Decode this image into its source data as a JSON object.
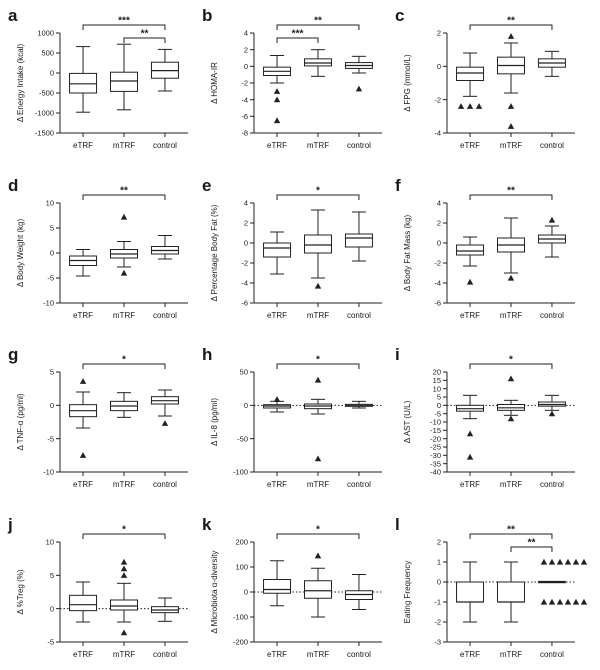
{
  "categories": [
    "eTRF",
    "mTRF",
    "control"
  ],
  "chart_data": [
    {
      "letter": "a",
      "type": "box",
      "ylabel": "Δ Energy Intake (kcal)",
      "ylim": [
        -1500,
        1000
      ],
      "yticks": [
        -1500,
        -1000,
        -500,
        0,
        500,
        1000
      ],
      "zero_line": false,
      "boxes": [
        {
          "category": "eTRF",
          "whisker_low": -980,
          "q1": -500,
          "median": -270,
          "q3": -10,
          "whisker_high": 660,
          "outliers": []
        },
        {
          "category": "mTRF",
          "whisker_low": -920,
          "q1": -460,
          "median": -200,
          "q3": 20,
          "whisker_high": 720,
          "outliers": []
        },
        {
          "category": "control",
          "whisker_low": -450,
          "q1": -130,
          "median": 60,
          "q3": 270,
          "whisker_high": 590,
          "outliers": []
        }
      ],
      "significance": [
        {
          "from": "eTRF",
          "to": "control",
          "label": "***",
          "level": 0
        },
        {
          "from": "mTRF",
          "to": "control",
          "label": "**",
          "level": 1
        }
      ]
    },
    {
      "letter": "b",
      "type": "box",
      "ylabel": "Δ HOMA-IR",
      "ylim": [
        -8,
        4
      ],
      "yticks": [
        -8,
        -6,
        -4,
        -2,
        0,
        2,
        4
      ],
      "zero_line": false,
      "boxes": [
        {
          "category": "eTRF",
          "whisker_low": -2.0,
          "q1": -1.1,
          "median": -0.6,
          "q3": -0.1,
          "whisker_high": 1.3,
          "outliers": [
            -3.0,
            -4.0,
            -6.5
          ]
        },
        {
          "category": "mTRF",
          "whisker_low": -1.2,
          "q1": 0.05,
          "median": 0.4,
          "q3": 0.9,
          "whisker_high": 2.0,
          "outliers": []
        },
        {
          "category": "control",
          "whisker_low": -0.8,
          "q1": -0.25,
          "median": 0.1,
          "q3": 0.45,
          "whisker_high": 1.2,
          "outliers": [
            -2.7
          ]
        }
      ],
      "significance": [
        {
          "from": "eTRF",
          "to": "control",
          "label": "**",
          "level": 0
        },
        {
          "from": "eTRF",
          "to": "mTRF",
          "label": "***",
          "level": 1
        }
      ]
    },
    {
      "letter": "c",
      "type": "box",
      "ylabel": "Δ FPG (mmol/L)",
      "ylim": [
        -4,
        2
      ],
      "yticks": [
        -4,
        -2,
        0,
        2
      ],
      "zero_line": false,
      "boxes": [
        {
          "category": "eTRF",
          "whisker_low": -1.8,
          "q1": -0.85,
          "median": -0.4,
          "q3": -0.05,
          "whisker_high": 0.8,
          "outliers": [
            -2.4,
            -2.4,
            -2.4
          ]
        },
        {
          "category": "mTRF",
          "whisker_low": -1.6,
          "q1": -0.45,
          "median": 0.05,
          "q3": 0.55,
          "whisker_high": 1.4,
          "outliers": [
            1.8,
            -2.4,
            -3.6
          ]
        },
        {
          "category": "control",
          "whisker_low": -0.6,
          "q1": -0.05,
          "median": 0.2,
          "q3": 0.45,
          "whisker_high": 0.9,
          "outliers": []
        }
      ],
      "significance": [
        {
          "from": "eTRF",
          "to": "control",
          "label": "**",
          "level": 0
        }
      ]
    },
    {
      "letter": "d",
      "type": "box",
      "ylabel": "Δ Body Weight (kg)",
      "ylim": [
        -10,
        10
      ],
      "yticks": [
        -10,
        -5,
        0,
        5,
        10
      ],
      "zero_line": false,
      "boxes": [
        {
          "category": "eTRF",
          "whisker_low": -4.6,
          "q1": -2.5,
          "median": -1.5,
          "q3": -0.6,
          "whisker_high": 0.7,
          "outliers": []
        },
        {
          "category": "mTRF",
          "whisker_low": -2.8,
          "q1": -1.0,
          "median": -0.2,
          "q3": 0.7,
          "whisker_high": 2.3,
          "outliers": [
            7.2,
            -4.0
          ]
        },
        {
          "category": "control",
          "whisker_low": -1.2,
          "q1": -0.2,
          "median": 0.5,
          "q3": 1.3,
          "whisker_high": 3.5,
          "outliers": []
        }
      ],
      "significance": [
        {
          "from": "eTRF",
          "to": "control",
          "label": "**",
          "level": 0
        }
      ]
    },
    {
      "letter": "e",
      "type": "box",
      "ylabel": "Δ Percentage Body Fat (%)",
      "ylim": [
        -6,
        4
      ],
      "yticks": [
        -6,
        -4,
        -2,
        0,
        2,
        4
      ],
      "zero_line": false,
      "boxes": [
        {
          "category": "eTRF",
          "whisker_low": -3.1,
          "q1": -1.4,
          "median": -0.5,
          "q3": 0.0,
          "whisker_high": 1.1,
          "outliers": []
        },
        {
          "category": "mTRF",
          "whisker_low": -3.5,
          "q1": -1.0,
          "median": -0.2,
          "q3": 0.8,
          "whisker_high": 3.3,
          "outliers": [
            -4.3
          ]
        },
        {
          "category": "control",
          "whisker_low": -1.8,
          "q1": -0.4,
          "median": 0.5,
          "q3": 0.9,
          "whisker_high": 3.1,
          "outliers": []
        }
      ],
      "significance": [
        {
          "from": "eTRF",
          "to": "control",
          "label": "*",
          "level": 0
        }
      ]
    },
    {
      "letter": "f",
      "type": "box",
      "ylabel": "Δ Body Fat Mass (kg)",
      "ylim": [
        -6,
        4
      ],
      "yticks": [
        -6,
        -4,
        -2,
        0,
        2,
        4
      ],
      "zero_line": false,
      "boxes": [
        {
          "category": "eTRF",
          "whisker_low": -2.3,
          "q1": -1.2,
          "median": -0.8,
          "q3": -0.2,
          "whisker_high": 0.6,
          "outliers": [
            -3.9
          ]
        },
        {
          "category": "mTRF",
          "whisker_low": -3.0,
          "q1": -0.9,
          "median": -0.2,
          "q3": 0.5,
          "whisker_high": 2.5,
          "outliers": [
            -3.5
          ]
        },
        {
          "category": "control",
          "whisker_low": -1.4,
          "q1": 0.0,
          "median": 0.4,
          "q3": 0.8,
          "whisker_high": 1.7,
          "outliers": [
            2.3
          ]
        }
      ],
      "significance": [
        {
          "from": "eTRF",
          "to": "control",
          "label": "**",
          "level": 0
        }
      ]
    },
    {
      "letter": "g",
      "type": "box",
      "ylabel": "Δ TNF-α (pg/ml)",
      "ylim": [
        -10,
        5
      ],
      "yticks": [
        -10,
        -5,
        0,
        5
      ],
      "zero_line": false,
      "boxes": [
        {
          "category": "eTRF",
          "whisker_low": -3.4,
          "q1": -1.7,
          "median": -0.8,
          "q3": 0.1,
          "whisker_high": 2.0,
          "outliers": [
            3.6,
            -7.5
          ]
        },
        {
          "category": "mTRF",
          "whisker_low": -1.8,
          "q1": -0.8,
          "median": -0.1,
          "q3": 0.6,
          "whisker_high": 1.9,
          "outliers": []
        },
        {
          "category": "control",
          "whisker_low": -1.6,
          "q1": 0.2,
          "median": 0.7,
          "q3": 1.3,
          "whisker_high": 2.3,
          "outliers": [
            -2.7
          ]
        }
      ],
      "significance": [
        {
          "from": "eTRF",
          "to": "control",
          "label": "*",
          "level": 0
        }
      ]
    },
    {
      "letter": "h",
      "type": "box",
      "ylabel": "Δ IL-8 (pg/ml)",
      "ylim": [
        -100,
        50
      ],
      "yticks": [
        -100,
        -50,
        0,
        50
      ],
      "zero_line": true,
      "boxes": [
        {
          "category": "eTRF",
          "whisker_low": -10,
          "q1": -4,
          "median": -1,
          "q3": 1,
          "whisker_high": 6,
          "outliers": [
            9
          ]
        },
        {
          "category": "mTRF",
          "whisker_low": -13,
          "q1": -5,
          "median": -1,
          "q3": 2,
          "whisker_high": 9,
          "outliers": [
            38,
            -80
          ]
        },
        {
          "category": "control",
          "whisker_low": -4,
          "q1": -1.5,
          "median": 0,
          "q3": 1.5,
          "whisker_high": 6,
          "outliers": []
        }
      ],
      "significance": [
        {
          "from": "eTRF",
          "to": "control",
          "label": "*",
          "level": 0
        }
      ]
    },
    {
      "letter": "i",
      "type": "box",
      "ylabel": "Δ AST (U/L)",
      "ylim": [
        -40,
        20
      ],
      "yticks": [
        -40,
        -35,
        -30,
        -25,
        -20,
        -15,
        -10,
        -5,
        0,
        5,
        10,
        15,
        20
      ],
      "zero_line": true,
      "boxes": [
        {
          "category": "eTRF",
          "whisker_low": -8,
          "q1": -3.5,
          "median": -2,
          "q3": 0,
          "whisker_high": 6,
          "outliers": [
            -17,
            -31
          ]
        },
        {
          "category": "mTRF",
          "whisker_low": -6,
          "q1": -3,
          "median": -1.5,
          "q3": 0.5,
          "whisker_high": 3,
          "outliers": [
            16,
            -8
          ]
        },
        {
          "category": "control",
          "whisker_low": -3,
          "q1": -0.5,
          "median": 0.5,
          "q3": 2,
          "whisker_high": 6,
          "outliers": [
            -5
          ]
        }
      ],
      "significance": [
        {
          "from": "eTRF",
          "to": "control",
          "label": "*",
          "level": 0
        }
      ]
    },
    {
      "letter": "j",
      "type": "box",
      "ylabel": "Δ %Treg (%)",
      "ylim": [
        -5,
        10
      ],
      "yticks": [
        -5,
        0,
        5,
        10
      ],
      "zero_line": true,
      "boxes": [
        {
          "category": "eTRF",
          "whisker_low": -2.0,
          "q1": -0.3,
          "median": 0.6,
          "q3": 2.0,
          "whisker_high": 4.0,
          "outliers": []
        },
        {
          "category": "mTRF",
          "whisker_low": -2.0,
          "q1": -0.2,
          "median": 0.4,
          "q3": 1.3,
          "whisker_high": 3.8,
          "outliers": [
            7.0,
            6.0,
            5.0,
            -3.6
          ]
        },
        {
          "category": "control",
          "whisker_low": -1.9,
          "q1": -0.6,
          "median": -0.2,
          "q3": 0.3,
          "whisker_high": 1.6,
          "outliers": []
        }
      ],
      "significance": [
        {
          "from": "eTRF",
          "to": "control",
          "label": "*",
          "level": 0
        }
      ]
    },
    {
      "letter": "k",
      "type": "box",
      "ylabel": "Δ Microbiota α-diversity",
      "ylim": [
        -200,
        200
      ],
      "yticks": [
        -200,
        -100,
        0,
        100,
        200
      ],
      "zero_line": true,
      "boxes": [
        {
          "category": "eTRF",
          "whisker_low": -55,
          "q1": -5,
          "median": 10,
          "q3": 50,
          "whisker_high": 125,
          "outliers": []
        },
        {
          "category": "mTRF",
          "whisker_low": -100,
          "q1": -25,
          "median": 5,
          "q3": 45,
          "whisker_high": 95,
          "outliers": [
            145
          ]
        },
        {
          "category": "control",
          "whisker_low": -70,
          "q1": -30,
          "median": -10,
          "q3": 5,
          "whisker_high": 70,
          "outliers": []
        }
      ],
      "significance": [
        {
          "from": "eTRF",
          "to": "control",
          "label": "*",
          "level": 0
        }
      ]
    },
    {
      "letter": "l",
      "type": "box",
      "ylabel": "Eating Frequency",
      "ylim": [
        -3,
        2
      ],
      "yticks": [
        -3,
        -2,
        -1,
        0,
        1,
        2
      ],
      "zero_line": true,
      "boxes": [
        {
          "category": "eTRF",
          "whisker_low": -2,
          "q1": -1,
          "median": -1,
          "q3": 0,
          "whisker_high": 1,
          "outliers": []
        },
        {
          "category": "mTRF",
          "whisker_low": -2,
          "q1": -1,
          "median": -1,
          "q3": 0,
          "whisker_high": 1,
          "outliers": []
        },
        {
          "category": "control",
          "whisker_low": 0,
          "q1": 0,
          "median": 0,
          "q3": 0,
          "whisker_high": 0,
          "outliers": [
            1,
            1,
            1,
            1,
            1,
            1,
            -1,
            -1,
            -1,
            -1,
            -1,
            -1
          ]
        }
      ],
      "significance": [
        {
          "from": "eTRF",
          "to": "control",
          "label": "**",
          "level": 0
        },
        {
          "from": "mTRF",
          "to": "control",
          "label": "**",
          "level": 1
        }
      ]
    }
  ]
}
